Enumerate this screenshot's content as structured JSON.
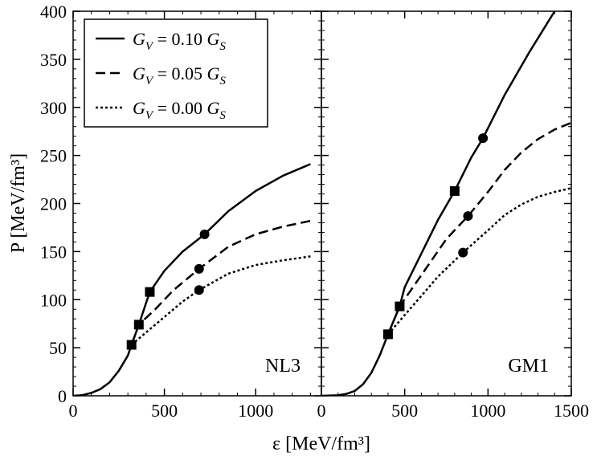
{
  "chart_data": {
    "type": "line",
    "xlabel": "ε [MeV/fm³]",
    "ylabel": "P [MeV/fm³]",
    "ylim": [
      0,
      400
    ],
    "yticks": [
      0,
      50,
      100,
      150,
      200,
      250,
      300,
      350,
      400
    ],
    "legend": {
      "placement": "top-left",
      "entries": [
        {
          "name": "solid",
          "label": "G_V = 0.10 G_S",
          "sym": "G",
          "sub": "V",
          "mid": " = 0.10 ",
          "sym2": "G",
          "sub2": "S"
        },
        {
          "name": "dashed",
          "label": "G_V = 0.05 G_S",
          "sym": "G",
          "sub": "V",
          "mid": " = 0.05 ",
          "sym2": "G",
          "sub2": "S"
        },
        {
          "name": "dotted",
          "label": "G_V = 0.00 G_S",
          "sym": "G",
          "sub": "V",
          "mid": " = 0.00 ",
          "sym2": "G",
          "sub2": "S"
        }
      ]
    },
    "panels": [
      {
        "name": "NL3",
        "label": "NL3",
        "xlim": [
          0,
          1360
        ],
        "xticks": [
          0,
          500,
          1000
        ],
        "hadronic": [
          [
            0,
            0
          ],
          [
            50,
            0.7
          ],
          [
            100,
            3
          ],
          [
            150,
            7
          ],
          [
            200,
            14
          ],
          [
            250,
            26
          ],
          [
            300,
            42
          ],
          [
            320,
            53
          ]
        ],
        "series": [
          {
            "name": "G_V = 0.10 G_S",
            "style": "solid",
            "points": [
              [
                320,
                53
              ],
              [
                360,
                74
              ],
              [
                420,
                108
              ],
              [
                500,
                130
              ],
              [
                600,
                150
              ],
              [
                720,
                168
              ],
              [
                850,
                192
              ],
              [
                1000,
                213
              ],
              [
                1150,
                229
              ],
              [
                1300,
                241
              ]
            ],
            "markers": [
              {
                "x": 420,
                "y": 108,
                "shape": "square"
              },
              {
                "x": 720,
                "y": 168,
                "shape": "circle"
              }
            ]
          },
          {
            "name": "G_V = 0.05 G_S",
            "style": "dashed",
            "points": [
              [
                320,
                53
              ],
              [
                360,
                74
              ],
              [
                450,
                90
              ],
              [
                550,
                110
              ],
              [
                690,
                132
              ],
              [
                850,
                155
              ],
              [
                1000,
                168
              ],
              [
                1150,
                176
              ],
              [
                1300,
                182
              ]
            ],
            "markers": [
              {
                "x": 360,
                "y": 74,
                "shape": "square"
              },
              {
                "x": 690,
                "y": 132,
                "shape": "circle"
              }
            ]
          },
          {
            "name": "G_V = 0.00 G_S",
            "style": "dotted",
            "points": [
              [
                320,
                53
              ],
              [
                400,
                66
              ],
              [
                500,
                82
              ],
              [
                600,
                98
              ],
              [
                690,
                110
              ],
              [
                850,
                127
              ],
              [
                1000,
                136
              ],
              [
                1150,
                141
              ],
              [
                1300,
                145
              ]
            ],
            "markers": [
              {
                "x": 320,
                "y": 53,
                "shape": "square"
              },
              {
                "x": 690,
                "y": 110,
                "shape": "circle"
              }
            ]
          }
        ]
      },
      {
        "name": "GM1",
        "label": "GM1",
        "xlim": [
          0,
          1500
        ],
        "xticks": [
          0,
          500,
          1000,
          1500
        ],
        "hadronic": [
          [
            0,
            0
          ],
          [
            100,
            0.5
          ],
          [
            150,
            2
          ],
          [
            200,
            5
          ],
          [
            250,
            12
          ],
          [
            300,
            24
          ],
          [
            350,
            42
          ],
          [
            400,
            64
          ]
        ],
        "series": [
          {
            "name": "G_V = 0.10 G_S",
            "style": "solid",
            "points": [
              [
                400,
                64
              ],
              [
                470,
                93
              ],
              [
                500,
                113
              ],
              [
                600,
                148
              ],
              [
                700,
                183
              ],
              [
                800,
                213
              ],
              [
                900,
                248
              ],
              [
                970,
                268
              ],
              [
                1100,
                313
              ],
              [
                1250,
                358
              ],
              [
                1400,
                400
              ]
            ],
            "markers": [
              {
                "x": 800,
                "y": 213,
                "shape": "square"
              },
              {
                "x": 970,
                "y": 268,
                "shape": "circle"
              }
            ]
          },
          {
            "name": "G_V = 0.05 G_S",
            "style": "dashed",
            "points": [
              [
                400,
                64
              ],
              [
                470,
                93
              ],
              [
                550,
                113
              ],
              [
                650,
                138
              ],
              [
                750,
                163
              ],
              [
                880,
                187
              ],
              [
                1000,
                212
              ],
              [
                1100,
                235
              ],
              [
                1200,
                253
              ],
              [
                1300,
                267
              ],
              [
                1400,
                277
              ],
              [
                1500,
                284
              ]
            ],
            "markers": [
              {
                "x": 470,
                "y": 93,
                "shape": "square"
              },
              {
                "x": 880,
                "y": 187,
                "shape": "circle"
              }
            ]
          },
          {
            "name": "G_V = 0.00 G_S",
            "style": "dotted",
            "points": [
              [
                400,
                64
              ],
              [
                500,
                84
              ],
              [
                600,
                104
              ],
              [
                700,
                124
              ],
              [
                850,
                149
              ],
              [
                1000,
                172
              ],
              [
                1100,
                188
              ],
              [
                1200,
                199
              ],
              [
                1300,
                207
              ],
              [
                1400,
                212
              ],
              [
                1500,
                216
              ]
            ],
            "markers": [
              {
                "x": 400,
                "y": 64,
                "shape": "square"
              },
              {
                "x": 850,
                "y": 149,
                "shape": "circle"
              }
            ]
          }
        ]
      }
    ]
  }
}
